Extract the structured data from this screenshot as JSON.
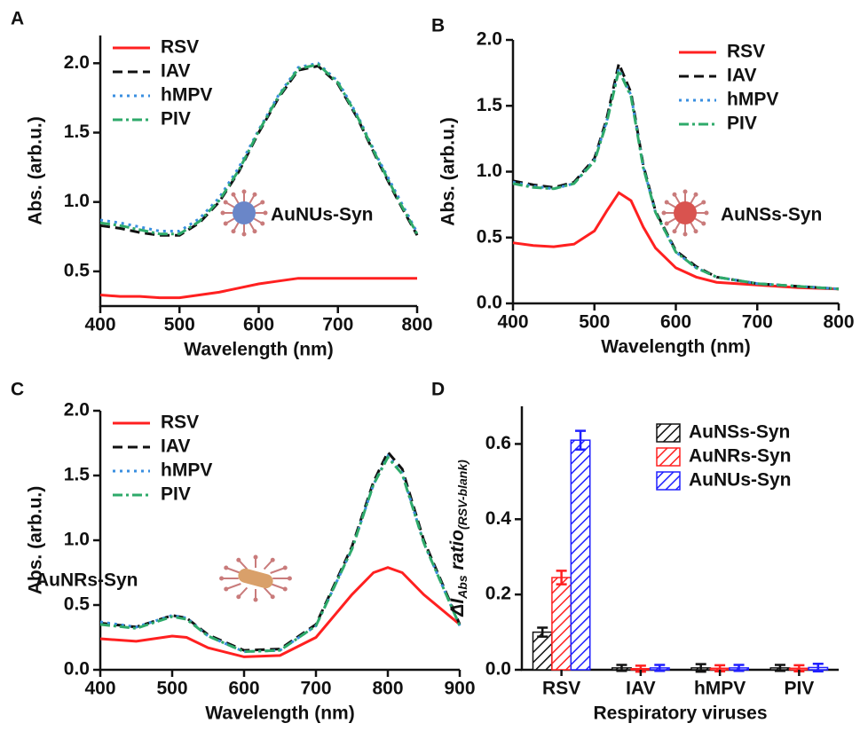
{
  "chart_data": [
    {
      "type": "line",
      "panel": "A",
      "xlabel": "Wavelength (nm)",
      "ylabel": "Abs. (arb.u.)",
      "x": [
        400,
        425,
        450,
        475,
        500,
        525,
        550,
        575,
        600,
        625,
        650,
        675,
        700,
        725,
        750,
        775,
        800
      ],
      "series": [
        {
          "name": "RSV",
          "color": "#ff2020",
          "style": "solid",
          "values": [
            0.33,
            0.32,
            0.32,
            0.31,
            0.31,
            0.33,
            0.35,
            0.38,
            0.41,
            0.43,
            0.45,
            0.45,
            0.45,
            0.45,
            0.45,
            0.45,
            0.45
          ]
        },
        {
          "name": "IAV",
          "color": "#111111",
          "style": "dashed",
          "values": [
            0.83,
            0.81,
            0.78,
            0.76,
            0.76,
            0.85,
            1.0,
            1.22,
            1.5,
            1.75,
            1.95,
            1.98,
            1.85,
            1.6,
            1.3,
            1.02,
            0.76
          ]
        },
        {
          "name": "hMPV",
          "color": "#3a8fe0",
          "style": "dotted",
          "values": [
            0.87,
            0.85,
            0.82,
            0.79,
            0.79,
            0.88,
            1.03,
            1.25,
            1.52,
            1.77,
            1.97,
            2.0,
            1.87,
            1.62,
            1.32,
            1.05,
            0.78
          ]
        },
        {
          "name": "PIV",
          "color": "#2eaa6a",
          "style": "dashdot",
          "values": [
            0.85,
            0.83,
            0.8,
            0.77,
            0.77,
            0.86,
            1.01,
            1.23,
            1.51,
            1.76,
            1.96,
            1.99,
            1.86,
            1.61,
            1.31,
            1.03,
            0.77
          ]
        }
      ],
      "xlim": [
        400,
        800
      ],
      "xticks": [
        400,
        500,
        600,
        700,
        800
      ],
      "ylim": [
        0.25,
        2.2
      ],
      "yticks": [
        0.5,
        {
          "value": 1,
          "label": "1.0"
        },
        1.5,
        {
          "value": 2,
          "label": "2.0"
        }
      ],
      "legend": "upper left",
      "annotation": {
        "text": "AuNUs-Syn",
        "color": "#2a3ee0"
      }
    },
    {
      "type": "line",
      "panel": "B",
      "xlabel": "Wavelength (nm)",
      "ylabel": "Abs. (arb.u.)",
      "x": [
        400,
        425,
        450,
        475,
        500,
        515,
        530,
        545,
        560,
        575,
        600,
        625,
        650,
        700,
        750,
        800
      ],
      "series": [
        {
          "name": "RSV",
          "color": "#ff2020",
          "style": "solid",
          "values": [
            0.46,
            0.44,
            0.43,
            0.45,
            0.55,
            0.7,
            0.84,
            0.78,
            0.58,
            0.42,
            0.27,
            0.2,
            0.16,
            0.14,
            0.12,
            0.11
          ]
        },
        {
          "name": "IAV",
          "color": "#111111",
          "style": "dashed",
          "values": [
            0.93,
            0.9,
            0.88,
            0.92,
            1.1,
            1.4,
            1.82,
            1.6,
            1.05,
            0.7,
            0.4,
            0.28,
            0.2,
            0.15,
            0.13,
            0.11
          ]
        },
        {
          "name": "hMPV",
          "color": "#3a8fe0",
          "style": "dotted",
          "values": [
            0.92,
            0.89,
            0.87,
            0.91,
            1.09,
            1.38,
            1.78,
            1.58,
            1.04,
            0.69,
            0.39,
            0.27,
            0.2,
            0.15,
            0.13,
            0.11
          ]
        },
        {
          "name": "PIV",
          "color": "#2eaa6a",
          "style": "dashdot",
          "values": [
            0.91,
            0.88,
            0.87,
            0.91,
            1.08,
            1.37,
            1.77,
            1.57,
            1.03,
            0.69,
            0.39,
            0.27,
            0.2,
            0.15,
            0.13,
            0.11
          ]
        }
      ],
      "xlim": [
        400,
        800
      ],
      "xticks": [
        400,
        500,
        600,
        700,
        800
      ],
      "ylim": [
        0,
        2
      ],
      "yticks": [
        {
          "value": 0,
          "label": "0.0"
        },
        0.5,
        {
          "value": 1,
          "label": "1.0"
        },
        1.5,
        {
          "value": 2,
          "label": "2.0"
        }
      ],
      "legend": "upper right",
      "annotation": {
        "text": "AuNSs-Syn",
        "color": "#111111"
      }
    },
    {
      "type": "line",
      "panel": "C",
      "xlabel": "Wavelength (nm)",
      "ylabel": "Abs. (arb.u.)",
      "x": [
        400,
        450,
        500,
        520,
        550,
        600,
        650,
        700,
        750,
        780,
        800,
        820,
        850,
        900
      ],
      "series": [
        {
          "name": "RSV",
          "color": "#ff2020",
          "style": "solid",
          "values": [
            0.24,
            0.22,
            0.26,
            0.25,
            0.17,
            0.1,
            0.11,
            0.25,
            0.58,
            0.75,
            0.79,
            0.75,
            0.58,
            0.35
          ]
        },
        {
          "name": "IAV",
          "color": "#111111",
          "style": "dashed",
          "values": [
            0.36,
            0.33,
            0.42,
            0.4,
            0.27,
            0.15,
            0.16,
            0.35,
            0.95,
            1.45,
            1.68,
            1.55,
            1.0,
            0.35
          ]
        },
        {
          "name": "hMPV",
          "color": "#3a8fe0",
          "style": "dotted",
          "values": [
            0.37,
            0.33,
            0.42,
            0.4,
            0.26,
            0.14,
            0.15,
            0.34,
            0.93,
            1.43,
            1.65,
            1.52,
            0.98,
            0.34
          ]
        },
        {
          "name": "PIV",
          "color": "#2eaa6a",
          "style": "dashdot",
          "values": [
            0.35,
            0.32,
            0.41,
            0.39,
            0.26,
            0.14,
            0.15,
            0.34,
            0.93,
            1.43,
            1.64,
            1.51,
            0.98,
            0.34
          ]
        }
      ],
      "xlim": [
        400,
        900
      ],
      "xticks": [
        400,
        500,
        600,
        700,
        800,
        900
      ],
      "ylim": [
        0,
        2
      ],
      "yticks": [
        {
          "value": 0,
          "label": "0.0"
        },
        0.5,
        {
          "value": 1,
          "label": "1.0"
        },
        1.5,
        {
          "value": 2,
          "label": "2.0"
        }
      ],
      "legend": "upper left",
      "annotation": {
        "text": "AuNRs-Syn",
        "color": "#ff2020"
      }
    },
    {
      "type": "bar",
      "panel": "D",
      "xlabel": "Respiratory viruses",
      "ylabel": [
        "ΔI",
        "Abs",
        " ratio",
        "(RSV-blank)"
      ],
      "categories": [
        "RSV",
        "IAV",
        "hMPV",
        "PIV"
      ],
      "series": [
        {
          "name": "AuNSs-Syn",
          "color": "#111111",
          "values": [
            0.1,
            0.005,
            0.005,
            0.005
          ],
          "errors": [
            0.012,
            0.008,
            0.01,
            0.008
          ]
        },
        {
          "name": "AuNRs-Syn",
          "color": "#ff2020",
          "values": [
            0.245,
            0.003,
            0.004,
            0.004
          ],
          "errors": [
            0.018,
            0.008,
            0.008,
            0.008
          ]
        },
        {
          "name": "AuNUs-Syn",
          "color": "#2020ff",
          "values": [
            0.61,
            0.005,
            0.005,
            0.006
          ],
          "errors": [
            0.025,
            0.008,
            0.008,
            0.01
          ]
        }
      ],
      "ylim": [
        0,
        0.7
      ],
      "yticks": [
        {
          "value": 0,
          "label": "0.0"
        },
        0.2,
        0.4,
        0.6
      ],
      "hatch": true,
      "legend": "upper right"
    }
  ]
}
